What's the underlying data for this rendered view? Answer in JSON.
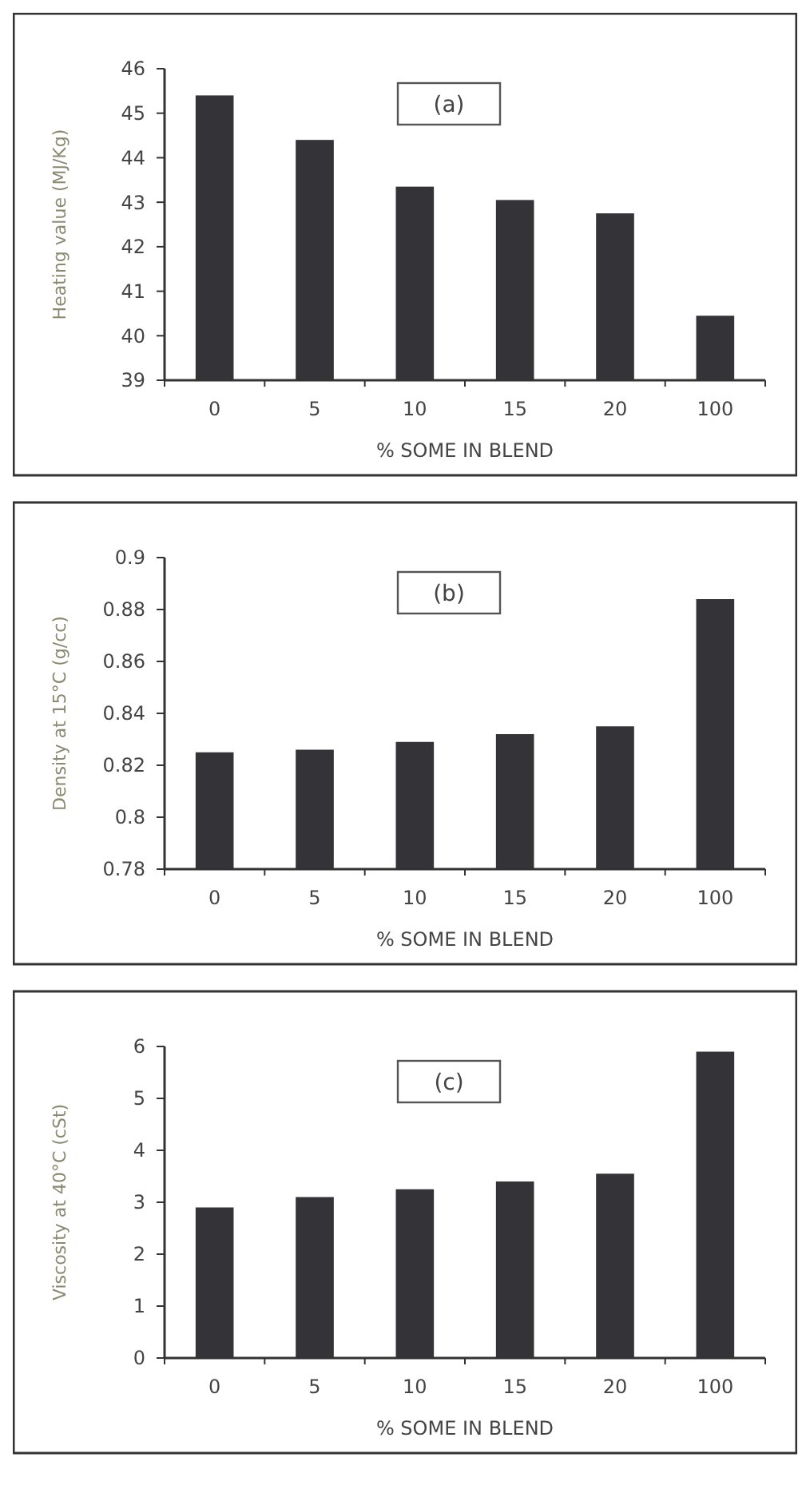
{
  "chart_data": [
    {
      "type": "bar",
      "ylabel": "Heating value (MJ/Kg)",
      "xlabel": "% SOME IN BLEND",
      "annotations": [
        "(a)"
      ],
      "categories": [
        "0",
        "5",
        "10",
        "15",
        "20",
        "100"
      ],
      "values": [
        45.4,
        44.4,
        43.35,
        43.05,
        42.75,
        40.45
      ],
      "color": "#333338",
      "ylim": [
        39,
        46
      ],
      "yticks": [
        39,
        40,
        41,
        42,
        43,
        44,
        45,
        46
      ]
    },
    {
      "type": "bar",
      "ylabel": "Density at 15°C (g/cc)",
      "xlabel": "% SOME IN BLEND",
      "annotations": [
        "(b)"
      ],
      "categories": [
        "0",
        "5",
        "10",
        "15",
        "20",
        "100"
      ],
      "values": [
        0.825,
        0.826,
        0.829,
        0.832,
        0.835,
        0.884
      ],
      "color": "#333338",
      "ylim": [
        0.78,
        0.9
      ],
      "yticks": [
        0.78,
        0.8,
        0.82,
        0.84,
        0.86,
        0.88,
        0.9
      ]
    },
    {
      "type": "bar",
      "ylabel": "Viscosity at 40°C (cSt)",
      "xlabel": "% SOME IN BLEND",
      "annotations": [
        "(c)"
      ],
      "categories": [
        "0",
        "5",
        "10",
        "15",
        "20",
        "100"
      ],
      "values": [
        2.9,
        3.1,
        3.25,
        3.4,
        3.55,
        5.9
      ],
      "color": "#333338",
      "ylim": [
        0,
        6
      ],
      "yticks": [
        0,
        1,
        2,
        3,
        4,
        5,
        6
      ]
    }
  ]
}
